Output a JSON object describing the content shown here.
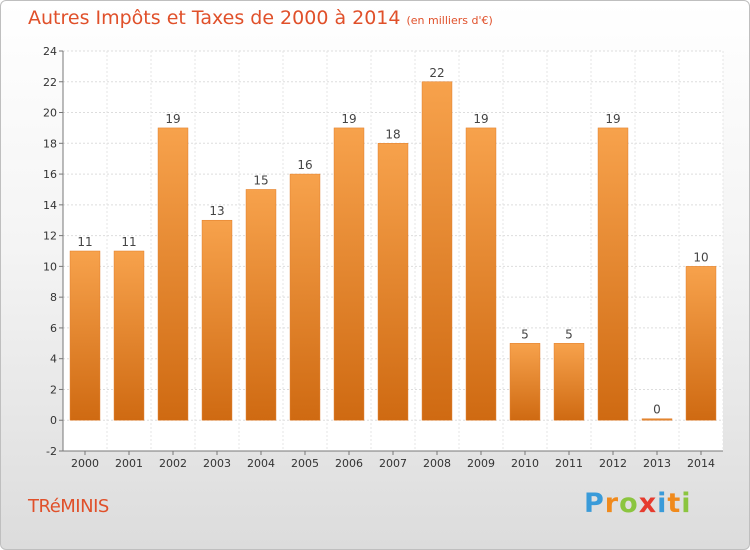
{
  "brand": {
    "letters": [
      "P",
      "r",
      "o",
      "x",
      "i",
      "t",
      "i"
    ],
    "colors": [
      "#3a9bd9",
      "#f08a1c",
      "#8bc53f",
      "#e63b2e",
      "#3a9bd9",
      "#f08a1c",
      "#8bc53f"
    ]
  },
  "commune": "TRéMINIS",
  "chart_data": {
    "type": "bar",
    "title": "Autres Impôts et Taxes de 2000 à 2014",
    "subtitle": "(en milliers d'€)",
    "xlabel": "",
    "ylabel": "",
    "categories": [
      "2000",
      "2001",
      "2002",
      "2003",
      "2004",
      "2005",
      "2006",
      "2007",
      "2008",
      "2009",
      "2010",
      "2011",
      "2012",
      "2013",
      "2014"
    ],
    "values": [
      11,
      11,
      19,
      13,
      15,
      16,
      19,
      18,
      22,
      19,
      5,
      5,
      19,
      0,
      10
    ],
    "data_labels": [
      "11",
      "11",
      "19",
      "13",
      "15",
      "16",
      "19",
      "18",
      "22",
      "19",
      "5",
      "5",
      "19",
      "0",
      "10"
    ],
    "ylim": [
      -2,
      24
    ],
    "yticks": [
      "-2",
      "0",
      "2",
      "4",
      "6",
      "8",
      "10",
      "12",
      "14",
      "16",
      "18",
      "20",
      "22",
      "24"
    ],
    "grid": true,
    "bar_color": "#f0862a"
  }
}
